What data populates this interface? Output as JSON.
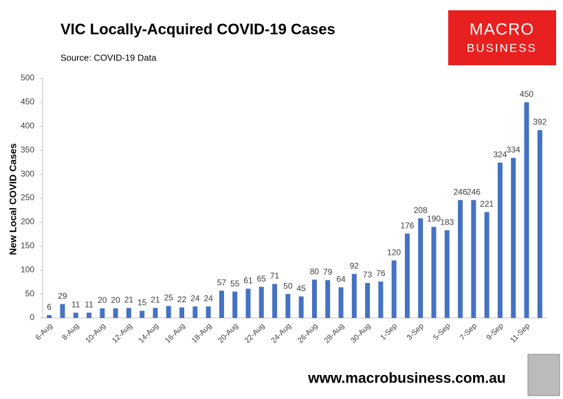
{
  "chart_data": {
    "type": "bar",
    "title": "VIC Locally-Acquired COVID-19 Cases",
    "subtitle": "Source: COVID-19 Data",
    "y_label": "New Local COVID Cases",
    "categories": [
      "6-Aug",
      null,
      "8-Aug",
      null,
      "10-Aug",
      null,
      "12-Aug",
      null,
      "14-Aug",
      null,
      "16-Aug",
      null,
      "18-Aug",
      null,
      "20-Aug",
      null,
      "22-Aug",
      null,
      "24-Aug",
      null,
      "26-Aug",
      null,
      "28-Aug",
      null,
      "30-Aug",
      null,
      "1-Sep",
      null,
      "3-Sep",
      null,
      "5-Sep",
      null,
      "7-Sep",
      null,
      "9-Sep",
      null,
      "11-Sep",
      null
    ],
    "values": [
      6,
      29,
      11,
      11,
      20,
      20,
      21,
      15,
      21,
      25,
      22,
      24,
      24,
      57,
      55,
      61,
      65,
      71,
      50,
      45,
      80,
      79,
      64,
      92,
      73,
      76,
      120,
      176,
      208,
      190,
      183,
      246,
      246,
      221,
      324,
      334,
      450,
      392
    ],
    "color": "#4472c4",
    "ylim": [
      0,
      500
    ],
    "yticks": [
      0,
      50,
      100,
      150,
      200,
      250,
      300,
      350,
      400,
      450,
      500
    ],
    "grid": false
  },
  "logo": {
    "line1": "MACRO",
    "line2": "BUSINESS"
  },
  "footer_url": "www.macrobusiness.com.au"
}
